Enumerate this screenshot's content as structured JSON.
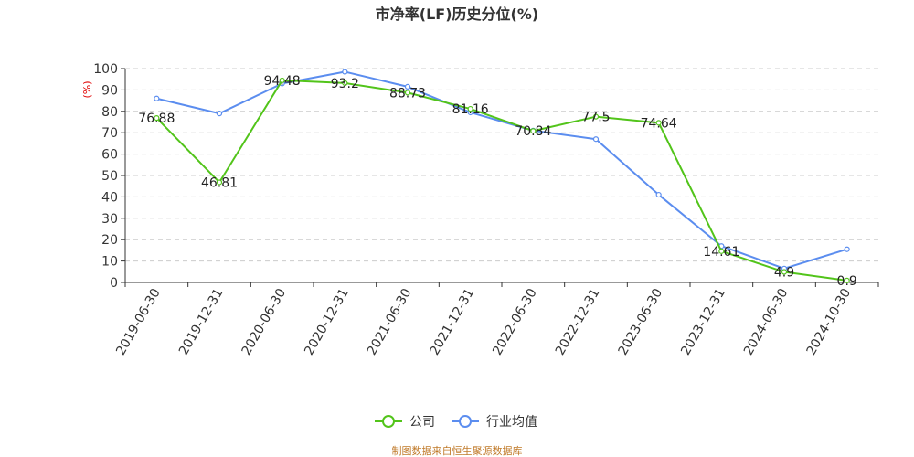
{
  "colors": {
    "company": "#52c41a",
    "industry": "#5b8def",
    "grid": "#cccccc",
    "axis": "#333333",
    "unit": "#e00000",
    "source": "#c07a2a"
  },
  "chart_data": {
    "type": "line",
    "title": "市净率(LF)历史分位(%)",
    "ylabel": "(%)",
    "xlabel": "",
    "ylim": [
      0,
      100
    ],
    "yticks": [
      0,
      10,
      20,
      30,
      40,
      50,
      60,
      70,
      80,
      90,
      100
    ],
    "grid": true,
    "legend_position": "bottom-center",
    "categories": [
      "2019-06-30",
      "2019-12-31",
      "2020-06-30",
      "2020-12-31",
      "2021-06-30",
      "2021-12-31",
      "2022-06-30",
      "2022-12-31",
      "2023-06-30",
      "2023-12-31",
      "2024-06-30",
      "2024-10-30"
    ],
    "series": [
      {
        "name": "公司",
        "color_key": "company",
        "values": [
          76.88,
          46.81,
          94.48,
          93.2,
          88.73,
          81.16,
          70.84,
          77.5,
          74.64,
          14.61,
          4.9,
          0.9
        ],
        "labels": [
          "76.88",
          "46.81",
          "94.48",
          "93.2",
          "88.73",
          "81.16",
          "70.84",
          "77.5",
          "74.64",
          "14.61",
          "4.9",
          "0.9"
        ]
      },
      {
        "name": "行业均值",
        "color_key": "industry",
        "values": [
          86,
          79,
          93,
          98.5,
          91.5,
          79.5,
          71,
          67,
          41,
          17,
          6.5,
          15.5
        ]
      }
    ]
  },
  "source_text": "制图数据来自恒生聚源数据库"
}
